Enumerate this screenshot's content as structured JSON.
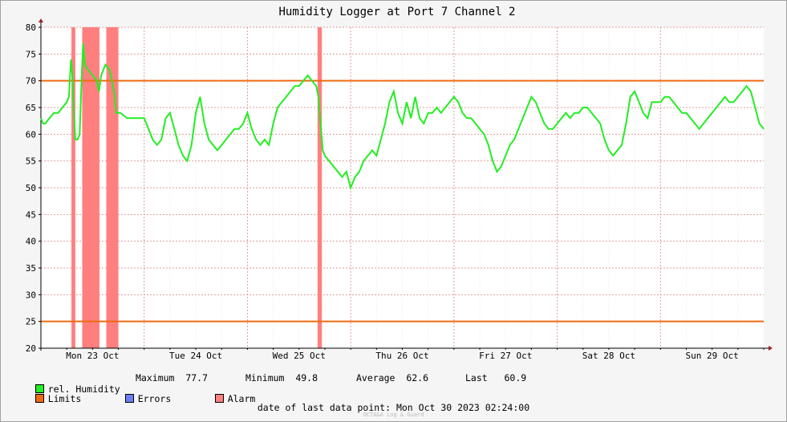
{
  "chart_data": {
    "type": "line",
    "title": "Humidity Logger at Port 7 Channel 2",
    "xlabel": "",
    "ylabel": "",
    "ylim": [
      20,
      80
    ],
    "yticks": [
      20,
      25,
      30,
      35,
      40,
      45,
      50,
      55,
      60,
      65,
      70,
      75,
      80
    ],
    "xlim_hours": [
      0,
      168
    ],
    "x_ticks": [
      {
        "label": "Mon 23 Oct",
        "hour": 12
      },
      {
        "label": "Tue 24 Oct",
        "hour": 36
      },
      {
        "label": "Wed 25 Oct",
        "hour": 60
      },
      {
        "label": "Thu 26 Oct",
        "hour": 84
      },
      {
        "label": "Fri 27 Oct",
        "hour": 108
      },
      {
        "label": "Sat 28 Oct",
        "hour": 132
      },
      {
        "label": "Sun 29 Oct",
        "hour": 156
      }
    ],
    "x_start": "Mon 23 Oct 2023 00:00",
    "grid": true,
    "limits": [
      {
        "value": 70,
        "color": "#f06a10"
      },
      {
        "value": 25,
        "color": "#f06a10"
      }
    ],
    "alarm_spans": [
      [
        7.1,
        8.0
      ],
      [
        9.6,
        13.6
      ],
      [
        15.2,
        18.0
      ],
      [
        64.3,
        65.3
      ]
    ],
    "series": [
      {
        "name": "rel. Humidity",
        "color": "#22ee22",
        "x": [
          0,
          0.5,
          1,
          2,
          3,
          4,
          5,
          6,
          6.5,
          7,
          7.3,
          7.6,
          8,
          8.5,
          9,
          9.5,
          9.8,
          10.2,
          11,
          12,
          13,
          13.5,
          14,
          15,
          16,
          17,
          17.5,
          18,
          18.5,
          20,
          22,
          24,
          25,
          26,
          27,
          28,
          28.5,
          29,
          30,
          31,
          32,
          33,
          34,
          35,
          36,
          37,
          38,
          39,
          40,
          41,
          42,
          43,
          44,
          45,
          46,
          47,
          48,
          49,
          50,
          51,
          52,
          53,
          54,
          55,
          56,
          57,
          58,
          59,
          60,
          61,
          62,
          63,
          64,
          64.5,
          65,
          65.5,
          66,
          67,
          68,
          69,
          70,
          71,
          72,
          73,
          74,
          75,
          76,
          77,
          78,
          79,
          80,
          81,
          82,
          83,
          84,
          85,
          86,
          87,
          88,
          89,
          90,
          91,
          92,
          93,
          94,
          95,
          96,
          97,
          98,
          99,
          100,
          101,
          102,
          103,
          104,
          105,
          106,
          107,
          108,
          109,
          110,
          111,
          112,
          113,
          114,
          115,
          116,
          117,
          118,
          119,
          120,
          121,
          122,
          123,
          124,
          125,
          126,
          127,
          128,
          129,
          130,
          131,
          132,
          133,
          134,
          135,
          136,
          137,
          138,
          139,
          140,
          141,
          142,
          143,
          144,
          145,
          146,
          147,
          148,
          149,
          150,
          151,
          152,
          153,
          154,
          155,
          156,
          157,
          158,
          159,
          160,
          161,
          162,
          163,
          164,
          165,
          166,
          167,
          168
        ],
        "values": [
          63,
          62,
          62,
          63,
          64,
          64,
          65,
          66,
          67,
          74,
          71,
          65,
          59,
          59,
          60,
          71,
          77,
          73,
          72,
          71,
          70,
          68,
          71,
          73,
          72,
          68,
          64,
          64,
          64,
          63,
          63,
          63,
          61,
          59,
          58,
          59,
          61,
          63,
          64,
          61,
          58,
          56,
          55,
          58,
          64,
          67,
          62,
          59,
          58,
          57,
          58,
          59,
          60,
          61,
          61,
          62,
          64,
          61,
          59,
          58,
          59,
          58,
          62,
          65,
          66,
          67,
          68,
          69,
          69,
          70,
          71,
          70,
          69,
          67,
          62,
          57,
          56,
          55,
          54,
          53,
          52,
          53,
          50,
          52,
          53,
          55,
          56,
          57,
          56,
          59,
          62,
          66,
          68,
          64,
          62,
          66,
          63,
          67,
          63,
          62,
          64,
          64,
          65,
          64,
          65,
          66,
          67,
          66,
          64,
          63,
          63,
          62,
          61,
          60,
          58,
          55,
          53,
          54,
          56,
          58,
          59,
          61,
          63,
          65,
          67,
          66,
          64,
          62,
          61,
          61,
          62,
          63,
          64,
          63,
          64,
          64,
          65,
          65,
          64,
          63,
          62,
          59,
          57,
          56,
          57,
          58,
          62,
          67,
          68,
          66,
          64,
          63,
          66,
          66,
          66,
          67,
          67,
          66,
          65,
          64,
          64,
          63,
          62,
          61,
          62,
          63,
          64,
          65,
          66,
          67,
          66,
          66,
          67,
          68,
          69,
          68,
          65,
          62,
          61
        ]
      }
    ],
    "legend": {
      "series_label": "rel. Humidity",
      "limits_label": "Limits",
      "errors_label": "Errors",
      "alarm_label": "Alarm",
      "colors": {
        "humidity": "#22ee22",
        "limits": "#f06a10",
        "errors": "#6b7ff5",
        "alarm": "#ff7f7f"
      }
    },
    "stats": {
      "maximum_label": "Maximum",
      "maximum": "77.7",
      "minimum_label": "Minimum",
      "minimum": "49.8",
      "average_label": "Average",
      "average": "62.6",
      "last_label": "Last",
      "last": "60.9"
    },
    "footer": "date of last data point:  Mon Oct 30 2023 02:24:00",
    "credit": "OCTA&A Log & Guard"
  }
}
